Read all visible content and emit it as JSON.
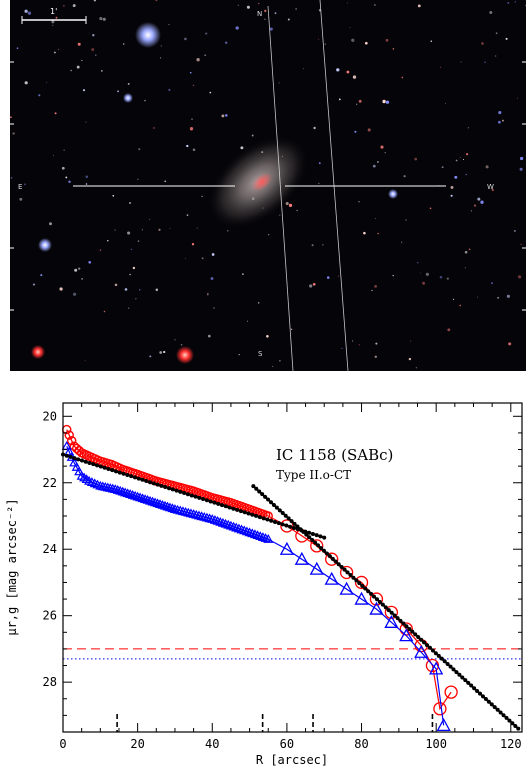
{
  "image_panel": {
    "scale_bar_label": "1'",
    "compass_north": "N",
    "compass_east": "E",
    "compass_west": "W",
    "compass_south": "S"
  },
  "chart_data": {
    "type": "scatter",
    "title": "IC 1158 (SABc)",
    "subtitle": "Type II.o-CT",
    "xlabel": "R [arcsec]",
    "ylabel": "μr,g [mag arcsec⁻²]",
    "xlim": [
      0,
      123
    ],
    "ylim": [
      29.5,
      19.6
    ],
    "y_inverted": true,
    "xticks": [
      0,
      20,
      40,
      60,
      80,
      100,
      120
    ],
    "yticks": [
      20,
      22,
      24,
      26,
      28
    ],
    "grid": false,
    "colors": {
      "r_band": "#ff0000",
      "g_band": "#0000ff",
      "fit": "#000000"
    },
    "series": [
      {
        "band": "r",
        "marker": "circle",
        "color": "#ff0000",
        "x": [
          1,
          3,
          5,
          7,
          10,
          13,
          16,
          20,
          25,
          30,
          35,
          40,
          45,
          50,
          55,
          60,
          64,
          68,
          72,
          76,
          80,
          84,
          88,
          92,
          96,
          99,
          101,
          104
        ],
        "y": [
          20.4,
          20.9,
          21.1,
          21.2,
          21.35,
          21.45,
          21.6,
          21.75,
          21.95,
          22.1,
          22.25,
          22.45,
          22.6,
          22.8,
          23.0,
          23.3,
          23.6,
          23.9,
          24.3,
          24.7,
          25.0,
          25.5,
          25.9,
          26.4,
          26.9,
          27.5,
          28.8,
          28.3
        ]
      },
      {
        "band": "g",
        "marker": "triangle",
        "color": "#0000ff",
        "x": [
          1,
          3,
          5,
          7,
          10,
          14,
          18,
          22,
          26,
          30,
          35,
          40,
          45,
          50,
          55,
          60,
          64,
          68,
          72,
          76,
          80,
          84,
          88,
          92,
          96,
          100,
          102
        ],
        "y": [
          20.9,
          21.4,
          21.8,
          21.95,
          22.1,
          22.2,
          22.35,
          22.5,
          22.65,
          22.8,
          22.95,
          23.1,
          23.3,
          23.5,
          23.7,
          24.0,
          24.3,
          24.6,
          24.9,
          25.2,
          25.5,
          25.8,
          26.2,
          26.6,
          27.1,
          27.6,
          29.3
        ]
      }
    ],
    "fit_lines": [
      {
        "segment": "inner",
        "x": [
          0,
          70
        ],
        "y": [
          21.15,
          23.65
        ]
      },
      {
        "segment": "outer",
        "x": [
          51,
          122
        ],
        "y": [
          22.1,
          29.4
        ]
      }
    ],
    "limit_lines": [
      {
        "band": "r",
        "style": "dashed",
        "color": "#ff0000",
        "y": 27.0
      },
      {
        "band": "g",
        "style": "dotted",
        "color": "#0000ff",
        "y": 27.3
      }
    ],
    "break_markers_x": [
      14.5,
      53.5,
      67,
      99
    ]
  }
}
